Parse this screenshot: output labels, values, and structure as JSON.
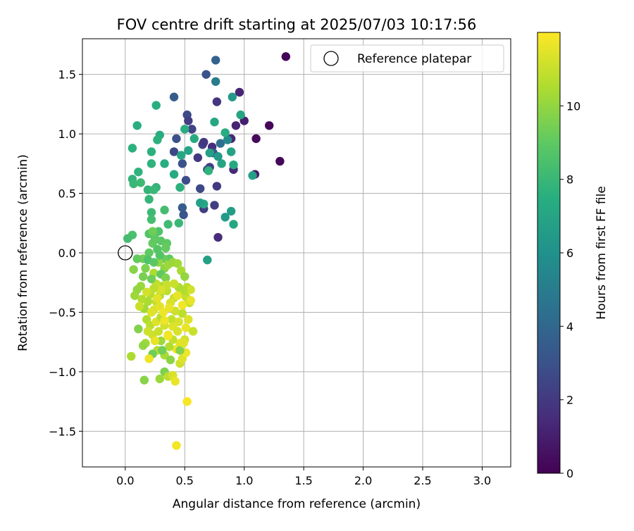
{
  "chart_data": {
    "type": "scatter",
    "title": "FOV centre drift starting at 2025/07/03 10:17:56",
    "xlabel": "Angular distance from reference (arcmin)",
    "ylabel": "Rotation from reference (arcmin)",
    "xlim": [
      -0.36,
      3.24
    ],
    "ylim": [
      -1.8,
      1.8
    ],
    "x_ticks": [
      0.0,
      0.5,
      1.0,
      1.5,
      2.0,
      2.5,
      3.0
    ],
    "x_tick_labels": [
      "0.0",
      "0.5",
      "1.0",
      "1.5",
      "2.0",
      "2.5",
      "3.0"
    ],
    "y_ticks": [
      -1.5,
      -1.0,
      -0.5,
      0.0,
      0.5,
      1.0,
      1.5
    ],
    "y_tick_labels": [
      "−1.5",
      "−1.0",
      "−0.5",
      "0.0",
      "0.5",
      "1.0",
      "1.5"
    ],
    "grid": true,
    "legend": {
      "position": "top-right",
      "entries": [
        "Reference platepar"
      ]
    },
    "reference_point": {
      "x": 0.0,
      "y": 0.0
    },
    "colorbar": {
      "label": "Hours from first FF file",
      "colormap": "viridis",
      "min": 0,
      "max": 12,
      "ticks": [
        0,
        2,
        4,
        6,
        8,
        10
      ],
      "tick_labels": [
        "0",
        "2",
        "4",
        "6",
        "8",
        "10"
      ]
    },
    "points": [
      {
        "x": 1.35,
        "y": 1.65,
        "c": 0.1
      },
      {
        "x": 1.21,
        "y": 1.07,
        "c": 0.2
      },
      {
        "x": 1.3,
        "y": 0.77,
        "c": 0.2
      },
      {
        "x": 1.1,
        "y": 0.96,
        "c": 0.3
      },
      {
        "x": 1.09,
        "y": 0.66,
        "c": 0.8
      },
      {
        "x": 1.0,
        "y": 1.11,
        "c": 1.0
      },
      {
        "x": 0.96,
        "y": 1.35,
        "c": 1.2
      },
      {
        "x": 0.93,
        "y": 1.07,
        "c": 1.2
      },
      {
        "x": 0.89,
        "y": 0.96,
        "c": 1.3
      },
      {
        "x": 0.91,
        "y": 0.7,
        "c": 1.4
      },
      {
        "x": 0.78,
        "y": 0.13,
        "c": 1.5
      },
      {
        "x": 0.77,
        "y": 1.27,
        "c": 1.8
      },
      {
        "x": 0.77,
        "y": 0.56,
        "c": 2.0
      },
      {
        "x": 0.75,
        "y": 0.4,
        "c": 2.2
      },
      {
        "x": 0.73,
        "y": 0.89,
        "c": 1.6
      },
      {
        "x": 0.71,
        "y": 0.72,
        "c": 2.3
      },
      {
        "x": 0.68,
        "y": 1.5,
        "c": 3.0
      },
      {
        "x": 0.65,
        "y": 0.91,
        "c": 2.5
      },
      {
        "x": 0.66,
        "y": 0.37,
        "c": 2.2
      },
      {
        "x": 0.63,
        "y": 0.54,
        "c": 2.6
      },
      {
        "x": 0.61,
        "y": 0.8,
        "c": 2.0
      },
      {
        "x": 0.56,
        "y": 1.04,
        "c": 2.4
      },
      {
        "x": 0.52,
        "y": 1.16,
        "c": 2.7
      },
      {
        "x": 0.51,
        "y": 0.61,
        "c": 2.8
      },
      {
        "x": 0.48,
        "y": 0.75,
        "c": 3.1
      },
      {
        "x": 0.48,
        "y": 0.38,
        "c": 3.4
      },
      {
        "x": 0.49,
        "y": 0.32,
        "c": 3.2
      },
      {
        "x": 0.43,
        "y": 0.96,
        "c": 2.9
      },
      {
        "x": 0.41,
        "y": 0.85,
        "c": 2.6
      },
      {
        "x": 0.41,
        "y": 1.31,
        "c": 3.5
      },
      {
        "x": 0.53,
        "y": 1.11,
        "c": 2.2
      },
      {
        "x": 0.66,
        "y": 0.93,
        "c": 1.9
      },
      {
        "x": 0.69,
        "y": 0.7,
        "c": 2.9
      },
      {
        "x": 0.74,
        "y": 0.84,
        "c": 3.3
      },
      {
        "x": 0.76,
        "y": 1.62,
        "c": 3.8
      },
      {
        "x": 0.8,
        "y": 0.92,
        "c": 4.4
      },
      {
        "x": 0.76,
        "y": 1.44,
        "c": 5.0
      },
      {
        "x": 0.86,
        "y": 0.95,
        "c": 5.6
      },
      {
        "x": 0.9,
        "y": 1.31,
        "c": 6.4
      },
      {
        "x": 0.97,
        "y": 1.16,
        "c": 7.0
      },
      {
        "x": 1.07,
        "y": 0.65,
        "c": 6.8
      },
      {
        "x": 0.91,
        "y": 0.74,
        "c": 7.2
      },
      {
        "x": 0.89,
        "y": 0.85,
        "c": 6.9
      },
      {
        "x": 0.91,
        "y": 0.24,
        "c": 7.1
      },
      {
        "x": 0.89,
        "y": 0.35,
        "c": 6.6
      },
      {
        "x": 0.84,
        "y": 0.3,
        "c": 6.5
      },
      {
        "x": 0.84,
        "y": 1.01,
        "c": 7.4
      },
      {
        "x": 0.81,
        "y": 0.75,
        "c": 7.0
      },
      {
        "x": 0.78,
        "y": 0.81,
        "c": 6.4
      },
      {
        "x": 0.75,
        "y": 1.1,
        "c": 7.1
      },
      {
        "x": 0.71,
        "y": 0.84,
        "c": 6.8
      },
      {
        "x": 0.7,
        "y": 0.69,
        "c": 7.7
      },
      {
        "x": 0.69,
        "y": -0.06,
        "c": 6.8
      },
      {
        "x": 0.66,
        "y": 0.41,
        "c": 7.2
      },
      {
        "x": 0.63,
        "y": 0.42,
        "c": 6.9
      },
      {
        "x": 0.58,
        "y": 0.96,
        "c": 7.3
      },
      {
        "x": 0.53,
        "y": 0.86,
        "c": 7.0
      },
      {
        "x": 0.5,
        "y": 1.04,
        "c": 7.4
      },
      {
        "x": 0.47,
        "y": 0.82,
        "c": 7.1
      },
      {
        "x": 0.46,
        "y": 0.55,
        "c": 7.6
      },
      {
        "x": 0.45,
        "y": 0.25,
        "c": 8.0
      },
      {
        "x": 0.41,
        "y": 0.66,
        "c": 7.3
      },
      {
        "x": 0.36,
        "y": 0.24,
        "c": 8.2
      },
      {
        "x": 0.33,
        "y": 0.75,
        "c": 7.5
      },
      {
        "x": 0.33,
        "y": 0.36,
        "c": 8.3
      },
      {
        "x": 0.29,
        "y": 0.99,
        "c": 7.4
      },
      {
        "x": 0.27,
        "y": 0.95,
        "c": 7.6
      },
      {
        "x": 0.26,
        "y": 1.24,
        "c": 7.5
      },
      {
        "x": 0.26,
        "y": 0.55,
        "c": 7.8
      },
      {
        "x": 0.22,
        "y": 0.85,
        "c": 7.6
      },
      {
        "x": 0.22,
        "y": 0.75,
        "c": 7.7
      },
      {
        "x": 0.2,
        "y": 0.45,
        "c": 7.9
      },
      {
        "x": 0.19,
        "y": 0.53,
        "c": 7.8
      },
      {
        "x": 0.22,
        "y": 0.34,
        "c": 8.1
      },
      {
        "x": 0.22,
        "y": 0.28,
        "c": 8.3
      },
      {
        "x": 0.1,
        "y": 1.07,
        "c": 7.5
      },
      {
        "x": 0.11,
        "y": 0.68,
        "c": 7.7
      },
      {
        "x": 0.06,
        "y": 0.62,
        "c": 7.8
      },
      {
        "x": 0.06,
        "y": 0.88,
        "c": 7.6
      },
      {
        "x": 0.06,
        "y": 0.15,
        "c": 8.5
      },
      {
        "x": 0.02,
        "y": 0.12,
        "c": 8.3
      },
      {
        "x": 0.07,
        "y": 0.58,
        "c": 8.0
      },
      {
        "x": 0.13,
        "y": 0.59,
        "c": 8.1
      },
      {
        "x": 0.24,
        "y": 0.53,
        "c": 8.0
      },
      {
        "x": 0.28,
        "y": 0.18,
        "c": 8.6
      },
      {
        "x": 0.3,
        "y": 0.1,
        "c": 8.9
      },
      {
        "x": 0.35,
        "y": 0.08,
        "c": 9.0
      },
      {
        "x": 0.37,
        "y": -0.05,
        "c": 9.0
      },
      {
        "x": 0.32,
        "y": -0.05,
        "c": 9.2
      },
      {
        "x": 0.23,
        "y": 0.08,
        "c": 9.1
      },
      {
        "x": 0.2,
        "y": 0.0,
        "c": 9.0
      },
      {
        "x": 0.15,
        "y": -0.05,
        "c": 9.4
      },
      {
        "x": 0.1,
        "y": -0.05,
        "c": 9.1
      },
      {
        "x": 0.17,
        "y": -0.13,
        "c": 9.6
      },
      {
        "x": 0.07,
        "y": -0.14,
        "c": 9.8
      },
      {
        "x": 0.24,
        "y": -0.17,
        "c": 10.5
      },
      {
        "x": 0.28,
        "y": -0.08,
        "c": 10.0
      },
      {
        "x": 0.33,
        "y": -0.13,
        "c": 9.9
      },
      {
        "x": 0.36,
        "y": -0.1,
        "c": 10.2
      },
      {
        "x": 0.4,
        "y": -0.08,
        "c": 10.1
      },
      {
        "x": 0.44,
        "y": -0.09,
        "c": 10.3
      },
      {
        "x": 0.47,
        "y": -0.15,
        "c": 10.4
      },
      {
        "x": 0.5,
        "y": -0.2,
        "c": 10.0
      },
      {
        "x": 0.52,
        "y": -0.29,
        "c": 10.7
      },
      {
        "x": 0.55,
        "y": -0.31,
        "c": 11.2
      },
      {
        "x": 0.51,
        "y": -0.37,
        "c": 10.9
      },
      {
        "x": 0.54,
        "y": -0.42,
        "c": 11.0
      },
      {
        "x": 0.49,
        "y": -0.32,
        "c": 10.6
      },
      {
        "x": 0.45,
        "y": -0.29,
        "c": 10.5
      },
      {
        "x": 0.41,
        "y": -0.38,
        "c": 11.0
      },
      {
        "x": 0.38,
        "y": -0.42,
        "c": 11.3
      },
      {
        "x": 0.35,
        "y": -0.32,
        "c": 10.8
      },
      {
        "x": 0.31,
        "y": -0.28,
        "c": 10.4
      },
      {
        "x": 0.29,
        "y": -0.36,
        "c": 10.6
      },
      {
        "x": 0.26,
        "y": -0.41,
        "c": 10.9
      },
      {
        "x": 0.24,
        "y": -0.48,
        "c": 11.3
      },
      {
        "x": 0.21,
        "y": -0.35,
        "c": 10.7
      },
      {
        "x": 0.19,
        "y": -0.41,
        "c": 10.5
      },
      {
        "x": 0.16,
        "y": -0.47,
        "c": 10.3
      },
      {
        "x": 0.13,
        "y": -0.28,
        "c": 10.1
      },
      {
        "x": 0.1,
        "y": -0.31,
        "c": 10.0
      },
      {
        "x": 0.08,
        "y": -0.36,
        "c": 10.2
      },
      {
        "x": 0.11,
        "y": -0.64,
        "c": 9.7
      },
      {
        "x": 0.18,
        "y": -0.56,
        "c": 10.6
      },
      {
        "x": 0.21,
        "y": -0.61,
        "c": 10.8
      },
      {
        "x": 0.23,
        "y": -0.69,
        "c": 11.1
      },
      {
        "x": 0.26,
        "y": -0.58,
        "c": 11.4
      },
      {
        "x": 0.28,
        "y": -0.66,
        "c": 11.0
      },
      {
        "x": 0.3,
        "y": -0.54,
        "c": 10.7
      },
      {
        "x": 0.33,
        "y": -0.61,
        "c": 11.2
      },
      {
        "x": 0.36,
        "y": -0.69,
        "c": 11.5
      },
      {
        "x": 0.39,
        "y": -0.56,
        "c": 10.9
      },
      {
        "x": 0.42,
        "y": -0.49,
        "c": 11.1
      },
      {
        "x": 0.45,
        "y": -0.58,
        "c": 11.3
      },
      {
        "x": 0.48,
        "y": -0.51,
        "c": 10.8
      },
      {
        "x": 0.51,
        "y": -0.63,
        "c": 11.6
      },
      {
        "x": 0.53,
        "y": -0.56,
        "c": 11.4
      },
      {
        "x": 0.57,
        "y": -0.66,
        "c": 11.0
      },
      {
        "x": 0.5,
        "y": -0.73,
        "c": 11.2
      },
      {
        "x": 0.46,
        "y": -0.76,
        "c": 11.5
      },
      {
        "x": 0.43,
        "y": -0.81,
        "c": 11.7
      },
      {
        "x": 0.4,
        "y": -0.73,
        "c": 10.9
      },
      {
        "x": 0.37,
        "y": -0.79,
        "c": 10.6
      },
      {
        "x": 0.33,
        "y": -0.86,
        "c": 10.4
      },
      {
        "x": 0.3,
        "y": -0.74,
        "c": 10.2
      },
      {
        "x": 0.27,
        "y": -0.82,
        "c": 10.7
      },
      {
        "x": 0.23,
        "y": -0.85,
        "c": 9.3
      },
      {
        "x": 0.2,
        "y": -0.89,
        "c": 11.7
      },
      {
        "x": 0.17,
        "y": -0.76,
        "c": 10.3
      },
      {
        "x": 0.15,
        "y": -0.78,
        "c": 10.0
      },
      {
        "x": 0.05,
        "y": -0.87,
        "c": 10.5
      },
      {
        "x": 0.16,
        "y": -1.07,
        "c": 9.8
      },
      {
        "x": 0.29,
        "y": -1.06,
        "c": 10.2
      },
      {
        "x": 0.33,
        "y": -1.0,
        "c": 9.6
      },
      {
        "x": 0.36,
        "y": -1.04,
        "c": 10.8
      },
      {
        "x": 0.4,
        "y": -1.03,
        "c": 11.3
      },
      {
        "x": 0.42,
        "y": -1.08,
        "c": 11.6
      },
      {
        "x": 0.46,
        "y": -0.93,
        "c": 11.1
      },
      {
        "x": 0.48,
        "y": -0.89,
        "c": 11.4
      },
      {
        "x": 0.51,
        "y": -0.84,
        "c": 11.7
      },
      {
        "x": 0.52,
        "y": -1.25,
        "c": 11.9
      },
      {
        "x": 0.43,
        "y": -1.62,
        "c": 11.8
      },
      {
        "x": 0.29,
        "y": -0.45,
        "c": 11.5
      },
      {
        "x": 0.32,
        "y": -0.5,
        "c": 11.7
      },
      {
        "x": 0.37,
        "y": -0.46,
        "c": 11.6
      },
      {
        "x": 0.4,
        "y": -0.62,
        "c": 11.4
      },
      {
        "x": 0.26,
        "y": -0.26,
        "c": 10.9
      },
      {
        "x": 0.22,
        "y": -0.22,
        "c": 9.3
      },
      {
        "x": 0.3,
        "y": -0.18,
        "c": 9.0
      },
      {
        "x": 0.34,
        "y": -0.21,
        "c": 9.6
      },
      {
        "x": 0.15,
        "y": -0.2,
        "c": 9.5
      },
      {
        "x": 0.27,
        "y": 0.03,
        "c": 8.8
      },
      {
        "x": 0.25,
        "y": 0.12,
        "c": 9.0
      },
      {
        "x": 0.2,
        "y": 0.16,
        "c": 8.7
      },
      {
        "x": 0.23,
        "y": 0.18,
        "c": 9.3
      },
      {
        "x": 0.29,
        "y": -0.02,
        "c": 8.7
      },
      {
        "x": 0.34,
        "y": 0.04,
        "c": 9.1
      },
      {
        "x": 0.19,
        "y": -0.06,
        "c": 8.6
      },
      {
        "x": 0.24,
        "y": -0.08,
        "c": 8.9
      },
      {
        "x": 0.35,
        "y": -0.27,
        "c": 11.0
      },
      {
        "x": 0.3,
        "y": -0.31,
        "c": 11.3
      },
      {
        "x": 0.24,
        "y": -0.3,
        "c": 10.8
      },
      {
        "x": 0.27,
        "y": -0.38,
        "c": 11.5
      },
      {
        "x": 0.18,
        "y": -0.33,
        "c": 11.2
      },
      {
        "x": 0.41,
        "y": -0.26,
        "c": 11.0
      },
      {
        "x": 0.44,
        "y": -0.36,
        "c": 11.6
      },
      {
        "x": 0.33,
        "y": -0.57,
        "c": 11.7
      },
      {
        "x": 0.22,
        "y": -0.5,
        "c": 11.4
      },
      {
        "x": 0.19,
        "y": -0.66,
        "c": 11.1
      },
      {
        "x": 0.25,
        "y": -0.74,
        "c": 11.6
      },
      {
        "x": 0.36,
        "y": -0.7,
        "c": 11.8
      },
      {
        "x": 0.44,
        "y": -0.66,
        "c": 11.3
      },
      {
        "x": 0.31,
        "y": -0.82,
        "c": 9.4
      },
      {
        "x": 0.38,
        "y": -0.9,
        "c": 9.9
      },
      {
        "x": 0.46,
        "y": -0.82,
        "c": 9.7
      },
      {
        "x": 0.49,
        "y": -0.76,
        "c": 11.5
      },
      {
        "x": 0.55,
        "y": -0.4,
        "c": 11.6
      },
      {
        "x": 0.48,
        "y": -0.44,
        "c": 11.8
      },
      {
        "x": 0.14,
        "y": -0.39,
        "c": 10.6
      },
      {
        "x": 0.12,
        "y": -0.45,
        "c": 11.0
      }
    ]
  }
}
